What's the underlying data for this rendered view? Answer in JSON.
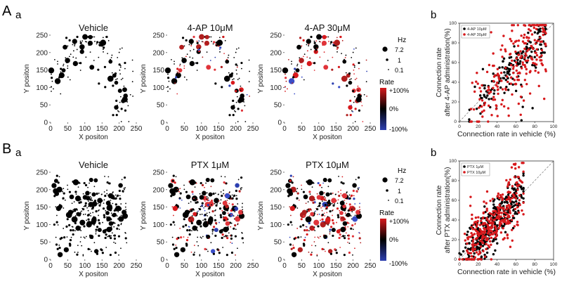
{
  "figure": {
    "panel_A_label": "A",
    "panel_B_label": "B",
    "sub_a": "a",
    "sub_b": "b"
  },
  "legend": {
    "size_title": "Hz",
    "size_levels": [
      "7.2",
      "1",
      "0.1"
    ],
    "rate_title": "Rate",
    "rate_ticks": [
      "+100%",
      "0%",
      "-100%"
    ],
    "colors": {
      "high": "#d7191c",
      "mid": "#000000",
      "low": "#2c3fb0"
    }
  },
  "chart_data": [
    {
      "type": "scatter",
      "title": "Vehicle",
      "panel": "A-a-1",
      "xlabel": "X positon",
      "ylabel": "Y positon",
      "xlim": [
        0,
        250
      ],
      "ylim": [
        0,
        250
      ],
      "xticks": [
        "0",
        "50",
        "100",
        "150",
        "200",
        "250"
      ],
      "yticks": [
        "0",
        "50",
        "100",
        "150",
        "200",
        "250"
      ],
      "seed": 11,
      "n": 150,
      "clusters": [
        [
          18,
          130
        ],
        [
          65,
          190
        ],
        [
          100,
          210
        ],
        [
          160,
          200
        ],
        [
          200,
          150
        ],
        [
          210,
          70
        ]
      ]
    },
    {
      "type": "scatter",
      "title": "4-AP 10μM",
      "panel": "A-a-2",
      "xlabel": "X positon",
      "ylabel": "Y positon",
      "xlim": [
        0,
        250
      ],
      "ylim": [
        0,
        250
      ],
      "xticks": [
        "0",
        "50",
        "100",
        "150",
        "200",
        "250"
      ],
      "yticks": [
        "0",
        "50",
        "100",
        "150",
        "200",
        "250"
      ],
      "seed": 11,
      "n": 150,
      "colored": true,
      "clusters": [
        [
          18,
          130
        ],
        [
          65,
          190
        ],
        [
          100,
          210
        ],
        [
          160,
          200
        ],
        [
          200,
          150
        ],
        [
          210,
          70
        ]
      ]
    },
    {
      "type": "scatter",
      "title": "4-AP 30μM",
      "panel": "A-a-3",
      "xlabel": "X positon",
      "ylabel": "Y positon",
      "xlim": [
        0,
        250
      ],
      "ylim": [
        0,
        250
      ],
      "xticks": [
        "0",
        "50",
        "100",
        "150",
        "200",
        "250"
      ],
      "yticks": [
        "0",
        "50",
        "100",
        "150",
        "200",
        "250"
      ],
      "seed": 11,
      "n": 150,
      "colored": true,
      "redder": true,
      "clusters": [
        [
          18,
          130
        ],
        [
          65,
          190
        ],
        [
          100,
          210
        ],
        [
          160,
          200
        ],
        [
          200,
          150
        ],
        [
          210,
          70
        ]
      ]
    },
    {
      "type": "scatter",
      "title": "",
      "panel": "A-b",
      "xlabel": "Connection rate in vehicle (%)",
      "ylabel": "Connection rate after 4-AP administration(%)",
      "ylabel_lines": [
        "Connection rate",
        "after 4-AP administration(%)"
      ],
      "xlim": [
        0,
        100
      ],
      "ylim": [
        0,
        100
      ],
      "xticks": [
        "0",
        "20",
        "40",
        "60",
        "80",
        "100"
      ],
      "yticks": [
        "0",
        "20",
        "40",
        "60",
        "80",
        "100"
      ],
      "legend": [
        "4-AP 10μM",
        "4-AP 30μM"
      ],
      "series_colors": [
        "#000000",
        "#d7191c"
      ],
      "seed": 5,
      "n": [
        170,
        230
      ],
      "spread": [
        9,
        20
      ]
    },
    {
      "type": "scatter",
      "title": "Vehicle",
      "panel": "B-a-1",
      "xlabel": "X positon",
      "ylabel": "Y positon",
      "xlim": [
        0,
        250
      ],
      "ylim": [
        0,
        250
      ],
      "xticks": [
        "0",
        "50",
        "100",
        "150",
        "200",
        "250"
      ],
      "yticks": [
        "0",
        "50",
        "100",
        "150",
        "200",
        "250"
      ],
      "seed": 23,
      "n": 330,
      "uniform": true
    },
    {
      "type": "scatter",
      "title": "PTX 1μM",
      "panel": "B-a-2",
      "xlabel": "X positon",
      "ylabel": "Y positon",
      "xlim": [
        0,
        250
      ],
      "ylim": [
        0,
        250
      ],
      "xticks": [
        "0",
        "50",
        "100",
        "150",
        "200",
        "250"
      ],
      "yticks": [
        "0",
        "50",
        "100",
        "150",
        "200",
        "250"
      ],
      "seed": 23,
      "n": 330,
      "uniform": true,
      "colored": true
    },
    {
      "type": "scatter",
      "title": "PTX 10μM",
      "panel": "B-a-3",
      "xlabel": "X positon",
      "ylabel": "Y positon",
      "xlim": [
        0,
        250
      ],
      "ylim": [
        0,
        250
      ],
      "xticks": [
        "0",
        "50",
        "100",
        "150",
        "200",
        "250"
      ],
      "yticks": [
        "0",
        "50",
        "100",
        "150",
        "200",
        "250"
      ],
      "seed": 23,
      "n": 330,
      "uniform": true,
      "colored": true,
      "redder": true
    },
    {
      "type": "scatter",
      "title": "",
      "panel": "B-b",
      "xlabel": "Connection rate in vehicle (%)",
      "ylabel": "Connection rate after PTX administration(%)",
      "ylabel_lines": [
        "Connection rate",
        "after PTX administration(%)"
      ],
      "xlim": [
        0,
        100
      ],
      "ylim": [
        0,
        100
      ],
      "xticks": [
        "0",
        "20",
        "40",
        "60",
        "80",
        "100"
      ],
      "yticks": [
        "0",
        "20",
        "40",
        "60",
        "80",
        "100"
      ],
      "legend": [
        "PTX 1μM",
        "PTX 10μM"
      ],
      "series_colors": [
        "#000000",
        "#d7191c"
      ],
      "seed": 9,
      "n": [
        330,
        330
      ],
      "spread": [
        12,
        16
      ],
      "low": true
    }
  ]
}
